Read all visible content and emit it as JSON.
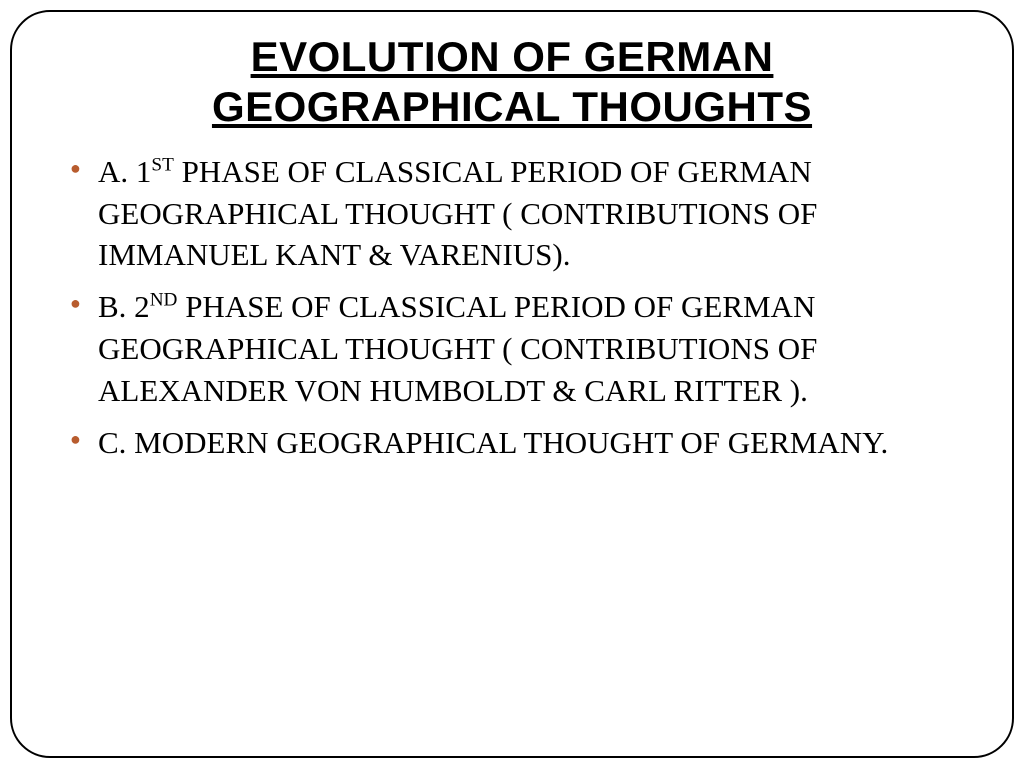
{
  "slide": {
    "title_line1": "EVOLUTION OF GERMAN",
    "title_line2": "GEOGRAPHICAL THOUGHTS",
    "bullets": {
      "item1_pre": "A. 1",
      "item1_sup": "ST",
      "item1_post": " PHASE OF  CLASSICAL PERIOD OF GERMAN GEOGRAPHICAL THOUGHT ( CONTRIBUTIONS OF IMMANUEL KANT & VARENIUS).",
      "item2_pre": "B. 2",
      "item2_sup": "ND",
      "item2_post": "  PHASE OF  CLASSICAL PERIOD OF GERMAN GEOGRAPHICAL THOUGHT ( CONTRIBUTIONS OF ALEXANDER VON HUMBOLDT & CARL RITTER ).",
      "item3": " C. MODERN GEOGRAPHICAL THOUGHT OF GERMANY."
    }
  },
  "style": {
    "bullet_color": "#b85c2e",
    "title_color": "#000000",
    "text_color": "#000000",
    "border_color": "#000000",
    "background_color": "#ffffff",
    "title_fontsize": 42,
    "body_fontsize": 31,
    "border_radius": 40
  }
}
